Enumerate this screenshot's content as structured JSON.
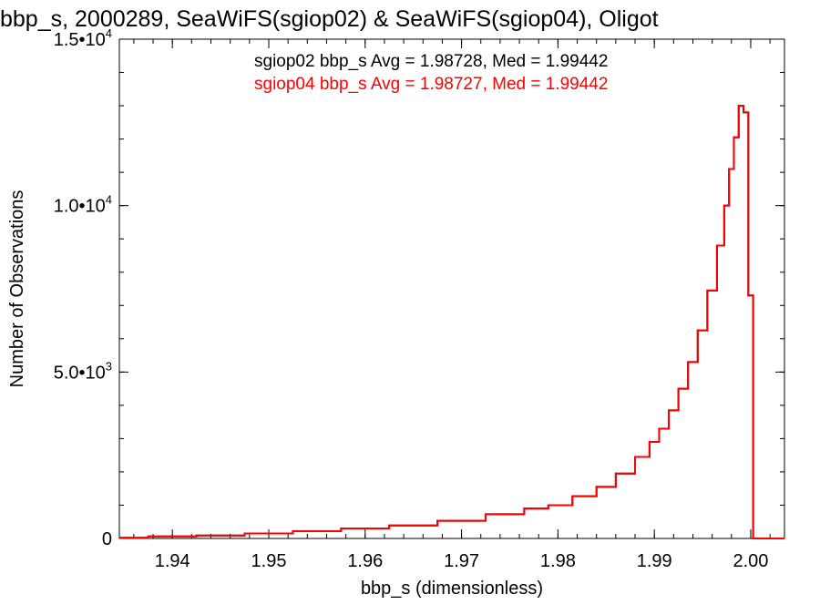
{
  "chart_data": {
    "type": "line",
    "title": "bbp_s, 2000289, SeaWiFS(sgiop02) & SeaWiFS(sgiop04), Oligot",
    "xlabel": "bbp_s (dimensionless)",
    "ylabel": "Number of Observations",
    "xlim": [
      1.9345,
      2.0035
    ],
    "ylim": [
      0,
      15000
    ],
    "x_ticks": [
      {
        "value": 1.94,
        "label": "1.94"
      },
      {
        "value": 1.95,
        "label": "1.95"
      },
      {
        "value": 1.96,
        "label": "1.96"
      },
      {
        "value": 1.97,
        "label": "1.97"
      },
      {
        "value": 1.98,
        "label": "1.98"
      },
      {
        "value": 1.99,
        "label": "1.99"
      },
      {
        "value": 2.0,
        "label": "2.00"
      }
    ],
    "y_ticks": [
      {
        "value": 0,
        "label": "0",
        "exp": ""
      },
      {
        "value": 5000,
        "label": "5.0•10",
        "exp": "3"
      },
      {
        "value": 10000,
        "label": "1.0•10",
        "exp": "4"
      },
      {
        "value": 15000,
        "label": "1.5•10",
        "exp": "4"
      }
    ],
    "annotations": [
      {
        "text": "sgiop02 bbp_s Avg = 1.98728, Med = 1.99442",
        "color": "#000000"
      },
      {
        "text": "sgiop04 bbp_s Avg = 1.98727, Med = 1.99442",
        "color": "#ff0000"
      }
    ],
    "series": [
      {
        "name": "sgiop02",
        "color": "#000000",
        "x": [
          1.935,
          1.94,
          1.945,
          1.95,
          1.955,
          1.96,
          1.965,
          1.97,
          1.975,
          1.978,
          1.98,
          1.983,
          1.985,
          1.987,
          1.989,
          1.99,
          1.991,
          1.992,
          1.993,
          1.994,
          1.995,
          1.996,
          1.997,
          1.9975,
          1.998,
          1.9985,
          1.999,
          1.9995,
          2.0
        ],
        "values": [
          20,
          60,
          90,
          150,
          220,
          300,
          390,
          530,
          730,
          900,
          1000,
          1270,
          1550,
          1950,
          2450,
          2900,
          3300,
          3850,
          4500,
          5300,
          6250,
          7450,
          8800,
          10000,
          11100,
          12050,
          13000,
          12800,
          7300
        ]
      },
      {
        "name": "sgiop04",
        "color": "#ff0000",
        "x": [
          1.935,
          1.94,
          1.945,
          1.95,
          1.955,
          1.96,
          1.965,
          1.97,
          1.975,
          1.978,
          1.98,
          1.983,
          1.985,
          1.987,
          1.989,
          1.99,
          1.991,
          1.992,
          1.993,
          1.994,
          1.995,
          1.996,
          1.997,
          1.9975,
          1.998,
          1.9985,
          1.999,
          1.9995,
          2.0
        ],
        "values": [
          20,
          60,
          90,
          150,
          220,
          300,
          390,
          530,
          730,
          900,
          1000,
          1270,
          1550,
          1950,
          2450,
          2900,
          3300,
          3850,
          4500,
          5300,
          6250,
          7450,
          8800,
          10000,
          11100,
          12050,
          13000,
          12800,
          7300
        ]
      }
    ]
  }
}
